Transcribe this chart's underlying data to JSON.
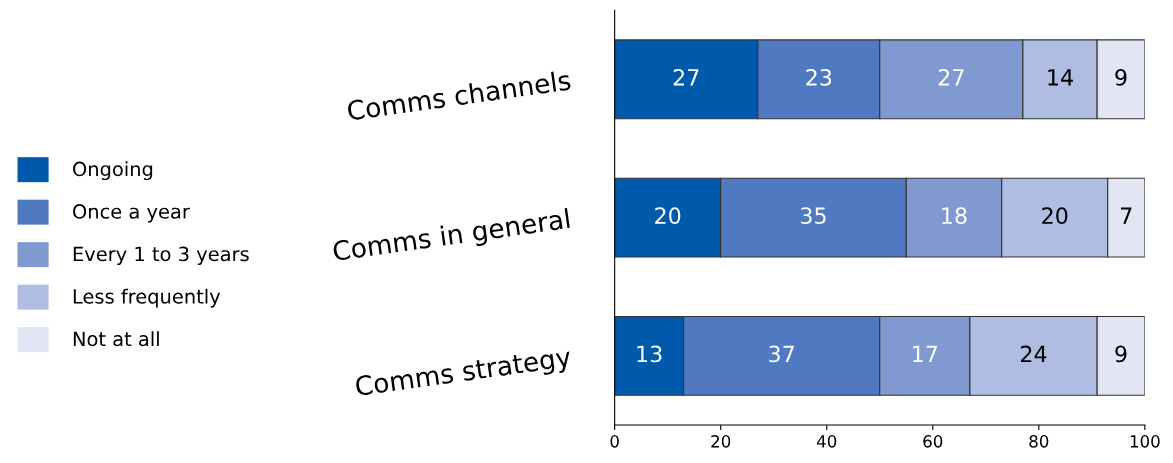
{
  "chart_data": {
    "type": "bar",
    "orientation": "horizontal",
    "stacked": true,
    "data_labels": true,
    "legend": "left",
    "grid": false,
    "categories": [
      "Comms channels",
      "Comms in general",
      "Comms strategy"
    ],
    "series": [
      {
        "name": "Ongoing",
        "color": "#005aab",
        "values": [
          27,
          20,
          13
        ]
      },
      {
        "name": "Once a year",
        "color": "#4f79c1",
        "values": [
          23,
          35,
          37
        ]
      },
      {
        "name": "Every 1 to 3 years",
        "color": "#8199d1",
        "values": [
          27,
          18,
          17
        ]
      },
      {
        "name": "Less frequently",
        "color": "#b0bde3",
        "values": [
          14,
          20,
          24
        ]
      },
      {
        "name": "Not at all",
        "color": "#e1e5f4",
        "values": [
          9,
          7,
          9
        ]
      }
    ],
    "xlim": [
      0,
      100
    ],
    "xticks": [
      0,
      20,
      40,
      60,
      80,
      100
    ]
  }
}
